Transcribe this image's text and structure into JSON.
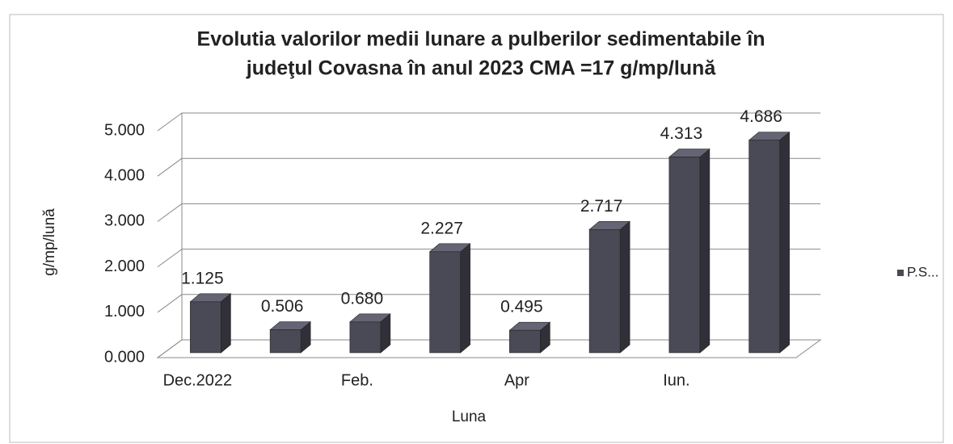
{
  "chart_data": {
    "type": "bar3d",
    "title": [
      "Evolutia valorilor medii lunare a pulberilor sedimentabile în",
      "judeţul Covasna  în anul 2023   CMA =17 g/mp/lună"
    ],
    "y_label": "g/mp/lună",
    "x_label": "Luna",
    "categories": [
      "Dec.2022",
      null,
      "Feb.",
      null,
      "Apr",
      null,
      "Iun.",
      null
    ],
    "series": [
      {
        "name": "P.S...",
        "color": "#4a4a56",
        "values": [
          1.125,
          0.506,
          0.68,
          2.227,
          0.495,
          2.717,
          4.313,
          4.686
        ],
        "value_labels": [
          "1.125",
          "0.506",
          "0.680",
          "2.227",
          "0.495",
          "2.717",
          "4.313",
          "4.686"
        ]
      }
    ],
    "ylim": [
      0,
      5
    ],
    "yticks": [
      {
        "value": 0,
        "label": "0.000"
      },
      {
        "value": 1,
        "label": "1.000"
      },
      {
        "value": 2,
        "label": "2.000"
      },
      {
        "value": 3,
        "label": "3.000"
      },
      {
        "value": 4,
        "label": "4.000"
      },
      {
        "value": 5,
        "label": "5.000"
      }
    ],
    "grid": true,
    "legend": "right"
  }
}
